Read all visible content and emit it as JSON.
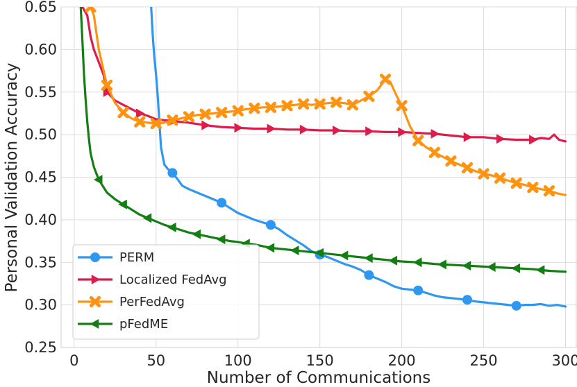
{
  "chart_data": {
    "type": "line",
    "title": "",
    "xlabel": "Number of Communications",
    "ylabel": "Personal Validation Accuracy",
    "xlim": [
      -8,
      307
    ],
    "ylim": [
      0.25,
      0.65
    ],
    "xticks": [
      0,
      50,
      100,
      150,
      200,
      250,
      300
    ],
    "yticks": [
      0.25,
      0.3,
      0.35,
      0.4,
      0.45,
      0.5,
      0.55,
      0.6,
      0.65
    ],
    "ytick_labels": [
      "0.25",
      "0.30",
      "0.35",
      "0.40",
      "0.45",
      "0.50",
      "0.55",
      "0.60",
      "0.65"
    ],
    "grid": true,
    "legend_position": "lower-left",
    "series": [
      {
        "name": "PERM",
        "color": "#2f97f0",
        "marker": "circle",
        "markers_at": [
          60,
          90,
          120,
          150,
          180,
          210,
          240,
          270
        ],
        "x": [
          47,
          48,
          49,
          50,
          51,
          52,
          53,
          55,
          57,
          60,
          63,
          66,
          70,
          75,
          80,
          85,
          90,
          95,
          100,
          105,
          110,
          115,
          120,
          125,
          130,
          135,
          140,
          145,
          150,
          155,
          160,
          165,
          170,
          175,
          180,
          185,
          190,
          195,
          200,
          205,
          210,
          215,
          220,
          225,
          230,
          235,
          240,
          245,
          250,
          255,
          260,
          265,
          270,
          275,
          280,
          285,
          290,
          295,
          300
        ],
        "y": [
          0.65,
          0.615,
          0.59,
          0.57,
          0.545,
          0.515,
          0.485,
          0.465,
          0.46,
          0.455,
          0.448,
          0.44,
          0.436,
          0.432,
          0.428,
          0.424,
          0.42,
          0.414,
          0.408,
          0.404,
          0.4,
          0.397,
          0.394,
          0.389,
          0.382,
          0.376,
          0.37,
          0.363,
          0.359,
          0.356,
          0.352,
          0.348,
          0.345,
          0.341,
          0.335,
          0.331,
          0.327,
          0.322,
          0.319,
          0.318,
          0.317,
          0.314,
          0.311,
          0.309,
          0.308,
          0.307,
          0.306,
          0.304,
          0.303,
          0.302,
          0.301,
          0.3,
          0.299,
          0.3,
          0.3,
          0.301,
          0.299,
          0.3,
          0.298
        ]
      },
      {
        "name": "Localized FedAvg",
        "color": "#dc1d4b",
        "marker": "triangle-right",
        "markers_at": [
          20,
          40,
          60,
          80,
          100,
          120,
          140,
          160,
          180,
          200,
          220,
          240,
          260,
          280
        ],
        "x": [
          5,
          8,
          10,
          12,
          15,
          18,
          20,
          25,
          30,
          35,
          40,
          45,
          50,
          55,
          60,
          70,
          80,
          90,
          100,
          110,
          120,
          130,
          140,
          150,
          160,
          170,
          180,
          190,
          200,
          210,
          220,
          230,
          240,
          250,
          260,
          270,
          280,
          285,
          290,
          293,
          296,
          300
        ],
        "y": [
          0.65,
          0.64,
          0.615,
          0.6,
          0.585,
          0.57,
          0.55,
          0.54,
          0.535,
          0.53,
          0.525,
          0.522,
          0.518,
          0.517,
          0.516,
          0.514,
          0.511,
          0.509,
          0.508,
          0.507,
          0.507,
          0.506,
          0.506,
          0.505,
          0.505,
          0.504,
          0.504,
          0.503,
          0.503,
          0.502,
          0.501,
          0.499,
          0.497,
          0.497,
          0.495,
          0.494,
          0.494,
          0.496,
          0.495,
          0.5,
          0.494,
          0.492
        ]
      },
      {
        "name": "PerFedAvg",
        "color": "#fd9311",
        "marker": "x",
        "markers_at": [
          10,
          20,
          30,
          40,
          50,
          60,
          70,
          80,
          90,
          100,
          110,
          120,
          130,
          140,
          150,
          160,
          170,
          180,
          190,
          200,
          210,
          220,
          230,
          240,
          250,
          260,
          270,
          280,
          290
        ],
        "x": [
          10,
          12,
          15,
          18,
          20,
          25,
          30,
          35,
          40,
          45,
          50,
          55,
          60,
          65,
          70,
          75,
          80,
          85,
          90,
          95,
          100,
          105,
          110,
          115,
          120,
          125,
          130,
          135,
          140,
          145,
          150,
          155,
          160,
          165,
          170,
          175,
          180,
          185,
          190,
          193,
          197,
          200,
          205,
          210,
          215,
          220,
          225,
          230,
          235,
          240,
          245,
          250,
          255,
          260,
          265,
          270,
          275,
          280,
          285,
          290,
          295,
          300
        ],
        "y": [
          0.65,
          0.64,
          0.6,
          0.575,
          0.558,
          0.537,
          0.526,
          0.519,
          0.515,
          0.514,
          0.513,
          0.514,
          0.517,
          0.519,
          0.521,
          0.523,
          0.524,
          0.525,
          0.526,
          0.527,
          0.528,
          0.53,
          0.531,
          0.532,
          0.532,
          0.533,
          0.534,
          0.535,
          0.536,
          0.535,
          0.536,
          0.537,
          0.538,
          0.537,
          0.535,
          0.54,
          0.545,
          0.552,
          0.565,
          0.562,
          0.545,
          0.534,
          0.51,
          0.493,
          0.485,
          0.479,
          0.474,
          0.469,
          0.465,
          0.461,
          0.457,
          0.454,
          0.452,
          0.449,
          0.446,
          0.443,
          0.441,
          0.438,
          0.436,
          0.434,
          0.431,
          0.429
        ]
      },
      {
        "name": "pFedME",
        "color": "#137f13",
        "marker": "triangle-left",
        "markers_at": [
          15,
          30,
          45,
          60,
          75,
          90,
          105,
          120,
          135,
          150,
          165,
          180,
          195,
          210,
          225,
          240,
          255,
          270,
          285
        ],
        "x": [
          4,
          5,
          6,
          7,
          8,
          9,
          10,
          12,
          15,
          20,
          25,
          30,
          35,
          40,
          45,
          50,
          55,
          60,
          65,
          70,
          75,
          80,
          85,
          90,
          95,
          100,
          105,
          110,
          115,
          120,
          125,
          130,
          135,
          140,
          145,
          150,
          160,
          170,
          180,
          190,
          200,
          210,
          220,
          230,
          240,
          250,
          260,
          270,
          280,
          290,
          300
        ],
        "y": [
          0.65,
          0.61,
          0.57,
          0.54,
          0.515,
          0.495,
          0.478,
          0.462,
          0.447,
          0.432,
          0.424,
          0.418,
          0.412,
          0.406,
          0.402,
          0.398,
          0.394,
          0.391,
          0.388,
          0.385,
          0.383,
          0.381,
          0.379,
          0.377,
          0.375,
          0.374,
          0.372,
          0.371,
          0.369,
          0.367,
          0.366,
          0.365,
          0.364,
          0.363,
          0.362,
          0.361,
          0.359,
          0.357,
          0.355,
          0.353,
          0.351,
          0.35,
          0.348,
          0.347,
          0.346,
          0.345,
          0.344,
          0.343,
          0.342,
          0.34,
          0.339
        ]
      }
    ]
  }
}
